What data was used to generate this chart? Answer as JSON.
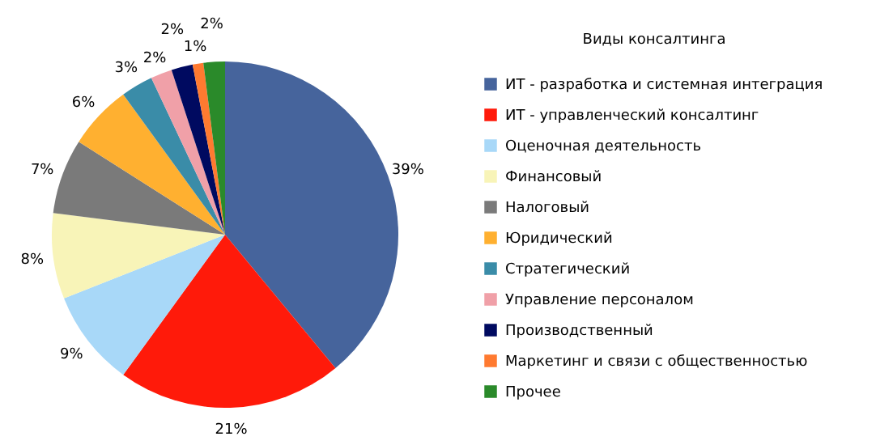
{
  "chart_data": {
    "type": "pie",
    "legend_title": "Виды консалтинга",
    "legend": "right",
    "categories": [
      "ИТ - разработка и системная  интеграция",
      "ИТ - управленческий консалтинг",
      "Оценочная деятельность",
      "Финансовый",
      "Налоговый",
      "Юридический",
      "Стратегический",
      "Управление персоналом",
      "Производственный",
      "Маркетинг и связи с общественностью",
      "Прочее"
    ],
    "values": [
      39,
      21,
      9,
      8,
      7,
      6,
      3,
      2,
      2,
      1,
      2
    ],
    "value_labels": [
      "39%",
      "21%",
      "9%",
      "8%",
      "7%",
      "6%",
      "3%",
      "2%",
      "2%",
      "1%",
      "2%"
    ],
    "colors": [
      "#46649c",
      "#ff1a0a",
      "#a8d8f8",
      "#f8f4b8",
      "#7a7a7a",
      "#ffb030",
      "#3a8ca8",
      "#f0a0a8",
      "#000a60",
      "#ff7a30",
      "#2a8a2a"
    ]
  }
}
